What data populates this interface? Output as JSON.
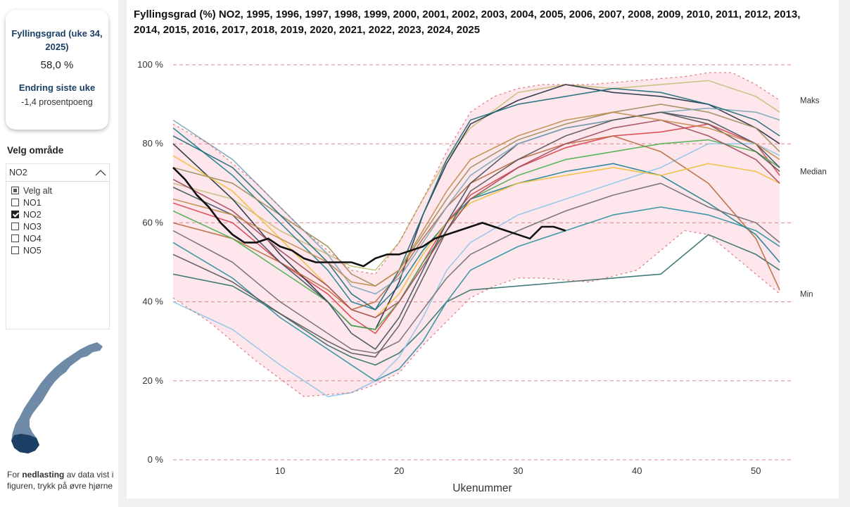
{
  "kpi": {
    "title": "Fyllingsgrad (uke 34, 2025)",
    "value": "58,0 %",
    "change_title": "Endring siste uke",
    "change_value": "-1,4 prosentpoeng"
  },
  "slicer": {
    "title": "Velg område",
    "selected": "NO2",
    "items": [
      {
        "label": "Velg alt",
        "state": "partial"
      },
      {
        "label": "NO1",
        "state": "unchecked"
      },
      {
        "label": "NO2",
        "state": "checked"
      },
      {
        "label": "NO3",
        "state": "unchecked"
      },
      {
        "label": "NO4",
        "state": "unchecked"
      },
      {
        "label": "NO5",
        "state": "unchecked"
      }
    ]
  },
  "footer": {
    "prefix": "For ",
    "bold": "nedlasting",
    "suffix": " av data vist i figuren, trykk på øvre hjørne"
  },
  "colors": {
    "band_fill": "#fde6ec",
    "reference": "#d24a4a",
    "current_year": "#111111",
    "grid": "#d98b8b",
    "kpi_heading": "#1c3f66",
    "map": "#6f8aa6",
    "map_highlight": "#1c3f66"
  },
  "chart_data": {
    "type": "line",
    "title": "Fyllingsgrad (%) NO2, 1995, 1996, 1997, 1998, 1999, 2000, 2001, 2002, 2003, 2004, 2005, 2006, 2007, 2008, 2009, 2010, 2011, 2012, 2013, 2014, 2015, 2016, 2017, 2018, 2019, 2020, 2021, 2022, 2023, 2024, 2025",
    "xlabel": "Ukenummer",
    "ylabel": "",
    "xlim": [
      1,
      53
    ],
    "ylim": [
      0,
      100
    ],
    "xticks": [
      10,
      20,
      30,
      40,
      50
    ],
    "yticks": [
      0,
      20,
      40,
      60,
      80,
      100
    ],
    "ytick_labels": [
      "0 %",
      "20 %",
      "40 %",
      "60 %",
      "80 %",
      "100 %"
    ],
    "grid": "horizontal dashed",
    "reference_labels": {
      "max": "Maks",
      "median": "Median",
      "min": "Min"
    },
    "reference_series": {
      "max": {
        "weeks": [
          1,
          4,
          8,
          12,
          16,
          18,
          20,
          22,
          24,
          26,
          28,
          30,
          32,
          36,
          40,
          44,
          46,
          48,
          50,
          52
        ],
        "values": [
          85,
          80,
          70,
          58,
          48,
          47,
          55,
          66,
          78,
          88,
          92,
          94,
          95,
          95,
          96,
          97,
          98,
          98,
          95,
          91
        ]
      },
      "median": {
        "weeks": [
          1,
          4,
          8,
          12,
          16,
          18,
          20,
          22,
          24,
          26,
          28,
          30,
          32,
          36,
          40,
          44,
          46,
          48,
          50,
          52
        ],
        "values": [
          72,
          64,
          55,
          46,
          39,
          38,
          44,
          53,
          62,
          69,
          74,
          77,
          79,
          82,
          84,
          84,
          82,
          80,
          77,
          73
        ]
      },
      "min": {
        "weeks": [
          1,
          4,
          8,
          12,
          16,
          18,
          20,
          22,
          24,
          26,
          28,
          30,
          32,
          36,
          40,
          44,
          46,
          48,
          50,
          52
        ],
        "values": [
          41,
          35,
          25,
          16,
          17,
          19,
          22,
          29,
          35,
          41,
          44,
          46,
          46,
          45,
          48,
          58,
          57,
          52,
          47,
          42
        ]
      }
    },
    "current_year": {
      "name": "2025",
      "weeks": [
        1,
        2,
        3,
        4,
        5,
        6,
        7,
        8,
        9,
        10,
        11,
        12,
        13,
        14,
        15,
        16,
        17,
        18,
        19,
        20,
        21,
        22,
        23,
        24,
        25,
        26,
        27,
        28,
        29,
        30,
        31,
        32,
        33,
        34
      ],
      "values": [
        74,
        71,
        67,
        64,
        60,
        57,
        55,
        55,
        56,
        54,
        53,
        51,
        50,
        50,
        50,
        50,
        49,
        51,
        52,
        52,
        53,
        54,
        56,
        57,
        58,
        59,
        60,
        59,
        58,
        57,
        56,
        59,
        59,
        58
      ]
    },
    "series": [
      {
        "name": "s1",
        "color": "#2f6f6a",
        "weeks": [
          1,
          6,
          10,
          14,
          16,
          18,
          20,
          22,
          24,
          26,
          30,
          34,
          38,
          42,
          46,
          50,
          52
        ],
        "values": [
          47,
          44,
          37,
          29,
          26,
          24,
          27,
          33,
          40,
          43,
          44,
          45,
          46,
          47,
          57,
          52,
          48
        ]
      },
      {
        "name": "s2",
        "color": "#c4c07a",
        "weeks": [
          1,
          6,
          10,
          14,
          16,
          18,
          20,
          22,
          24,
          26,
          30,
          34,
          38,
          42,
          46,
          50,
          52
        ],
        "values": [
          70,
          66,
          58,
          52,
          49,
          48,
          55,
          66,
          76,
          84,
          93,
          95,
          94,
          95,
          96,
          92,
          88
        ]
      },
      {
        "name": "s3",
        "color": "#1a7f8e",
        "weeks": [
          1,
          6,
          10,
          14,
          16,
          18,
          20,
          22,
          24,
          26,
          30,
          34,
          38,
          42,
          46,
          50,
          52
        ],
        "values": [
          84,
          72,
          60,
          48,
          40,
          38,
          44,
          53,
          60,
          66,
          70,
          73,
          75,
          72,
          65,
          57,
          50
        ]
      },
      {
        "name": "s4",
        "color": "#8fc7e8",
        "weeks": [
          1,
          6,
          10,
          14,
          16,
          18,
          20,
          22,
          24,
          26,
          30,
          34,
          38,
          42,
          46,
          50,
          52
        ],
        "values": [
          40,
          33,
          24,
          16,
          17,
          20,
          26,
          36,
          48,
          55,
          62,
          66,
          70,
          74,
          80,
          80,
          77
        ]
      },
      {
        "name": "s5",
        "color": "#d9424b",
        "weeks": [
          1,
          6,
          10,
          14,
          16,
          18,
          20,
          22,
          24,
          26,
          30,
          34,
          38,
          42,
          46,
          50,
          52
        ],
        "values": [
          65,
          60,
          50,
          42,
          36,
          32,
          40,
          50,
          60,
          67,
          74,
          79,
          82,
          83,
          85,
          80,
          72
        ]
      },
      {
        "name": "s6",
        "color": "#1f2f3f",
        "weeks": [
          1,
          6,
          10,
          14,
          16,
          18,
          20,
          22,
          24,
          26,
          30,
          34,
          38,
          42,
          46,
          50,
          52
        ],
        "values": [
          80,
          66,
          52,
          40,
          34,
          33,
          45,
          62,
          75,
          85,
          91,
          95,
          93,
          92,
          90,
          84,
          80
        ]
      },
      {
        "name": "s7",
        "color": "#b96a3b",
        "weeks": [
          1,
          6,
          10,
          14,
          16,
          18,
          20,
          22,
          24,
          26,
          30,
          34,
          38,
          42,
          46,
          50,
          52
        ],
        "values": [
          60,
          56,
          50,
          43,
          38,
          40,
          47,
          56,
          64,
          70,
          76,
          80,
          82,
          78,
          70,
          56,
          43
        ]
      },
      {
        "name": "s8",
        "color": "#4caf50",
        "weeks": [
          1,
          6,
          10,
          14,
          16,
          18,
          20,
          22,
          24,
          26,
          30,
          34,
          38,
          42,
          46,
          50,
          52
        ],
        "values": [
          63,
          56,
          48,
          40,
          34,
          33,
          40,
          50,
          58,
          66,
          72,
          76,
          78,
          80,
          81,
          78,
          74
        ]
      },
      {
        "name": "s9",
        "color": "#f0c03a",
        "weeks": [
          1,
          6,
          10,
          14,
          16,
          18,
          20,
          22,
          24,
          26,
          30,
          34,
          38,
          42,
          46,
          50,
          52
        ],
        "values": [
          77,
          68,
          56,
          44,
          38,
          36,
          42,
          52,
          60,
          65,
          70,
          72,
          74,
          72,
          75,
          73,
          70
        ]
      },
      {
        "name": "s10",
        "color": "#6e6e6e",
        "weeks": [
          1,
          6,
          10,
          14,
          16,
          18,
          20,
          22,
          24,
          26,
          30,
          34,
          38,
          42,
          46,
          50,
          52
        ],
        "values": [
          58,
          50,
          40,
          32,
          28,
          27,
          30,
          38,
          46,
          52,
          58,
          63,
          67,
          70,
          64,
          60,
          55
        ]
      },
      {
        "name": "s11",
        "color": "#2a8fa0",
        "weeks": [
          1,
          6,
          10,
          14,
          16,
          18,
          20,
          22,
          24,
          26,
          30,
          34,
          38,
          42,
          46,
          50,
          52
        ],
        "values": [
          55,
          46,
          36,
          28,
          24,
          20,
          23,
          30,
          40,
          48,
          54,
          58,
          62,
          64,
          62,
          58,
          54
        ]
      },
      {
        "name": "s12",
        "color": "#3e4f5e",
        "weeks": [
          1,
          6,
          10,
          14,
          16,
          18,
          20,
          22,
          24,
          26,
          30,
          34,
          38,
          42,
          46,
          50,
          52
        ],
        "values": [
          69,
          62,
          50,
          40,
          32,
          28,
          36,
          48,
          60,
          70,
          80,
          84,
          86,
          88,
          86,
          80,
          74
        ]
      },
      {
        "name": "s13",
        "color": "#9a8e5c",
        "weeks": [
          1,
          6,
          10,
          14,
          16,
          18,
          20,
          22,
          24,
          26,
          30,
          34,
          38,
          42,
          46,
          50,
          52
        ],
        "values": [
          74,
          70,
          62,
          54,
          47,
          44,
          48,
          57,
          66,
          74,
          81,
          85,
          88,
          90,
          88,
          84,
          78
        ]
      },
      {
        "name": "s14",
        "color": "#7aa6b8",
        "weeks": [
          1,
          6,
          10,
          14,
          16,
          18,
          20,
          22,
          24,
          26,
          30,
          34,
          38,
          42,
          46,
          50,
          52
        ],
        "values": [
          86,
          76,
          64,
          52,
          44,
          42,
          46,
          55,
          64,
          72,
          80,
          84,
          86,
          88,
          89,
          88,
          86
        ]
      },
      {
        "name": "s15",
        "color": "#a04a5a",
        "weeks": [
          1,
          6,
          10,
          14,
          16,
          18,
          20,
          22,
          24,
          26,
          30,
          34,
          38,
          42,
          46,
          50,
          52
        ],
        "values": [
          71,
          63,
          53,
          44,
          38,
          36,
          40,
          49,
          58,
          66,
          74,
          80,
          84,
          86,
          82,
          76,
          70
        ]
      },
      {
        "name": "s16",
        "color": "#555555",
        "weeks": [
          1,
          6,
          10,
          14,
          16,
          18,
          20,
          22,
          24,
          26,
          30,
          34,
          38,
          42,
          46,
          50,
          52
        ],
        "values": [
          52,
          45,
          37,
          30,
          27,
          26,
          34,
          46,
          58,
          68,
          76,
          82,
          86,
          88,
          85,
          78,
          73
        ]
      },
      {
        "name": "s17",
        "color": "#1b6b78",
        "weeks": [
          1,
          6,
          10,
          14,
          16,
          18,
          20,
          22,
          24,
          26,
          30,
          34,
          38,
          42,
          46,
          50,
          52
        ],
        "values": [
          82,
          74,
          62,
          50,
          42,
          38,
          48,
          62,
          76,
          86,
          90,
          92,
          94,
          93,
          90,
          86,
          82
        ]
      },
      {
        "name": "s18",
        "color": "#c08c4a",
        "weeks": [
          1,
          6,
          10,
          14,
          16,
          18,
          20,
          22,
          24,
          26,
          30,
          34,
          38,
          42,
          46,
          50,
          52
        ],
        "values": [
          66,
          62,
          56,
          50,
          45,
          44,
          48,
          58,
          68,
          76,
          82,
          86,
          88,
          86,
          84,
          80,
          76
        ]
      }
    ]
  }
}
